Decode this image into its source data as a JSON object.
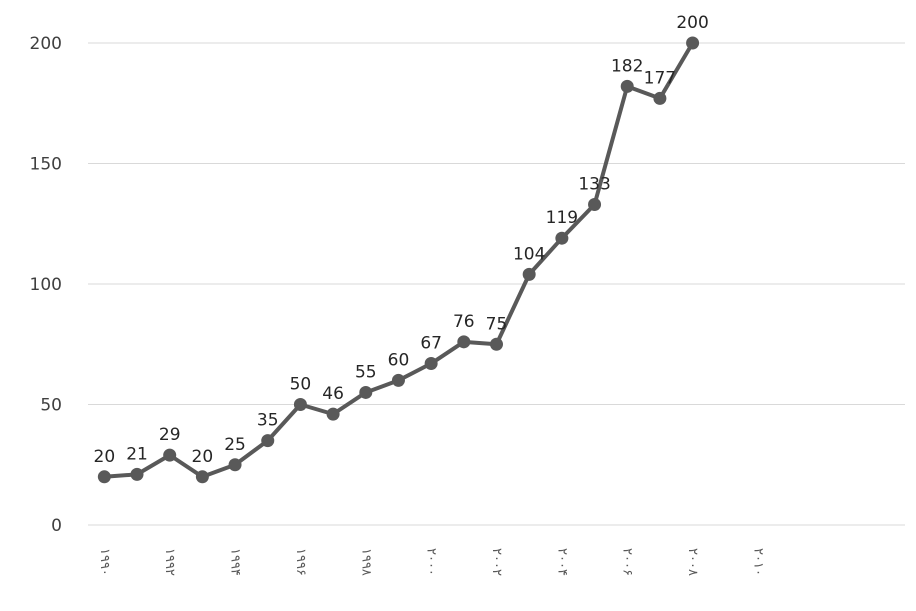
{
  "chart_data": {
    "type": "line",
    "categories": [
      "۱۹۹۰",
      null,
      "۱۹۹۲",
      null,
      "۱۹۹۴",
      null,
      "۱۹۹۶",
      null,
      "۱۹۹۸",
      null,
      "۲۰۰۰",
      null,
      "۲۰۰۲",
      null,
      "۲۰۰۴",
      null,
      "۲۰۰۶",
      null,
      "۲۰۰۸",
      null,
      "۲۰۱۰",
      null,
      null,
      null,
      null
    ],
    "values": [
      20,
      21,
      29,
      20,
      25,
      35,
      50,
      46,
      55,
      60,
      67,
      76,
      75,
      104,
      119,
      133,
      182,
      177,
      200,
      null,
      null,
      null,
      null,
      null,
      null
    ],
    "color": "#595959",
    "ylim": [
      0,
      200
    ],
    "yticks": [
      0,
      50,
      100,
      150,
      200
    ],
    "grid": true
  }
}
